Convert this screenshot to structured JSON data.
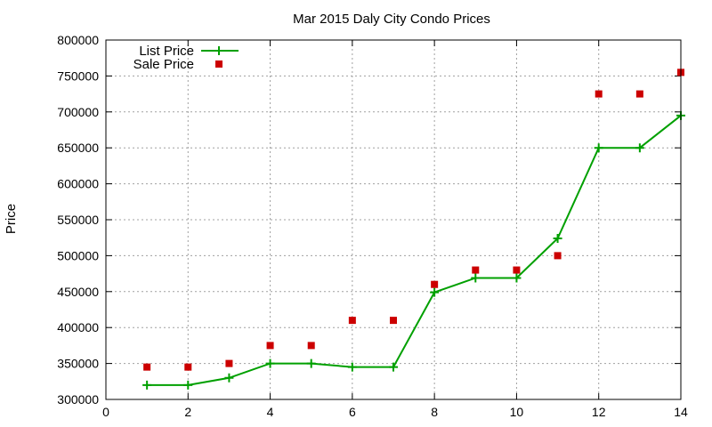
{
  "chart_data": {
    "type": "line",
    "title": "Mar 2015 Daly City Condo Prices",
    "xlabel": "",
    "ylabel": "Price",
    "xlim": [
      0,
      14
    ],
    "ylim": [
      300000,
      800000
    ],
    "x_ticks": [
      0,
      2,
      4,
      6,
      8,
      10,
      12,
      14
    ],
    "y_ticks": [
      300000,
      350000,
      400000,
      450000,
      500000,
      550000,
      600000,
      650000,
      700000,
      750000,
      800000
    ],
    "grid": true,
    "legend_position": "top-left",
    "series": [
      {
        "name": "List Price",
        "style": "line+cross",
        "color": "#00a000",
        "x": [
          1,
          2,
          3,
          4,
          5,
          6,
          7,
          8,
          9,
          10,
          11,
          12,
          13,
          14
        ],
        "y": [
          320000,
          320000,
          330000,
          350000,
          350000,
          345000,
          345000,
          449000,
          469000,
          469000,
          524000,
          650000,
          650000,
          695000
        ]
      },
      {
        "name": "Sale Price",
        "style": "square-markers",
        "color": "#cc0000",
        "x": [
          1,
          2,
          3,
          4,
          5,
          6,
          7,
          8,
          9,
          10,
          11,
          12,
          13,
          14
        ],
        "y": [
          345000,
          345000,
          350000,
          375000,
          375000,
          410000,
          410000,
          460000,
          480000,
          480000,
          500000,
          725000,
          725000,
          755000
        ]
      }
    ]
  }
}
